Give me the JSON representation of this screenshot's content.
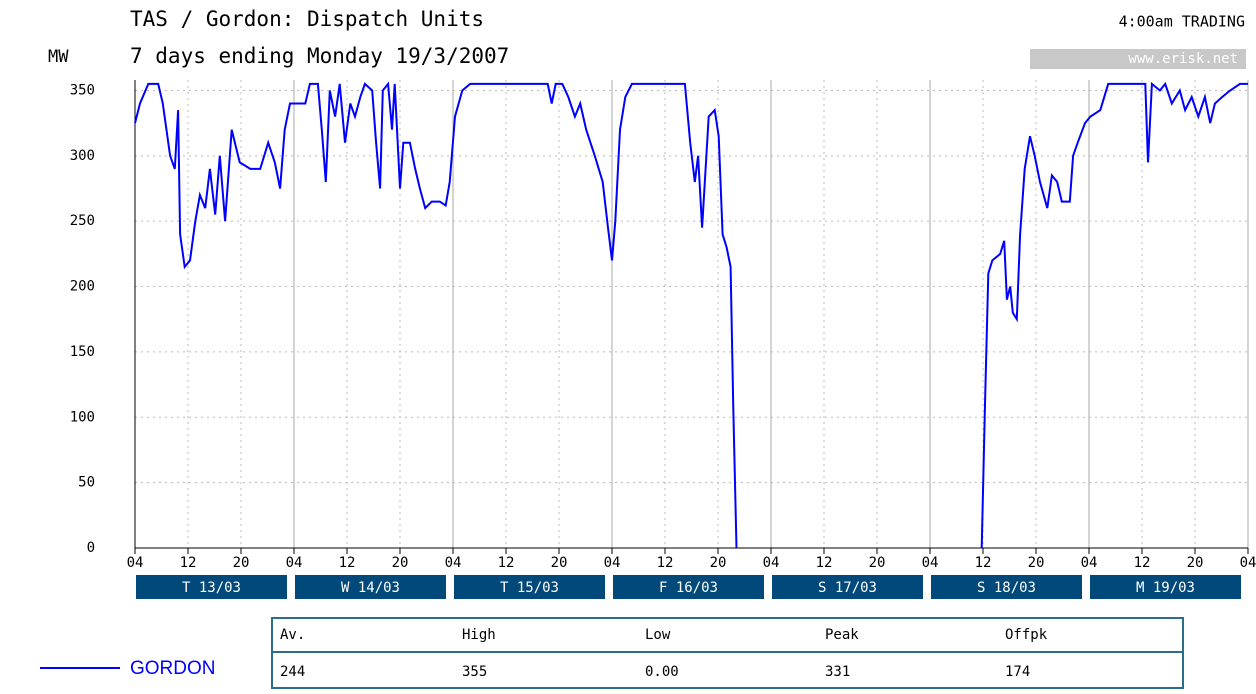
{
  "chart_data": {
    "type": "line",
    "title": "TAS / Gordon: Dispatch Units",
    "subtitle": "7 days ending Monday 19/3/2007",
    "status": "4:00am TRADING",
    "source": "www.erisk.net",
    "y_label": "MW",
    "xlim": [
      0,
      168
    ],
    "xticks": [
      {
        "value": 0,
        "label": "04"
      },
      {
        "value": 8,
        "label": "12"
      },
      {
        "value": 16,
        "label": "20"
      },
      {
        "value": 24,
        "label": "04"
      },
      {
        "value": 32,
        "label": "12"
      },
      {
        "value": 40,
        "label": "20"
      },
      {
        "value": 48,
        "label": "04"
      },
      {
        "value": 56,
        "label": "12"
      },
      {
        "value": 64,
        "label": "20"
      },
      {
        "value": 72,
        "label": "04"
      },
      {
        "value": 80,
        "label": "12"
      },
      {
        "value": 88,
        "label": "20"
      },
      {
        "value": 96,
        "label": "04"
      },
      {
        "value": 104,
        "label": "12"
      },
      {
        "value": 112,
        "label": "20"
      },
      {
        "value": 120,
        "label": "04"
      },
      {
        "value": 128,
        "label": "12"
      },
      {
        "value": 136,
        "label": "20"
      },
      {
        "value": 144,
        "label": "04"
      },
      {
        "value": 152,
        "label": "12"
      },
      {
        "value": 160,
        "label": "20"
      },
      {
        "value": 168,
        "label": "04"
      }
    ],
    "day_labels": [
      "T 13/03",
      "W 14/03",
      "T 15/03",
      "F 16/03",
      "S 17/03",
      "S 18/03",
      "M 19/03"
    ],
    "ylim": [
      0,
      358
    ],
    "yticks": [
      0,
      50,
      100,
      150,
      200,
      250,
      300,
      350
    ],
    "grid": true,
    "x": [
      0,
      0.75,
      2,
      3.5,
      4.2,
      5.3,
      6,
      6.5,
      6.8,
      7.5,
      8.3,
      9.1,
      9.8,
      10.6,
      11.3,
      12.1,
      12.8,
      13.6,
      14.6,
      15.8,
      17.4,
      18.9,
      20.1,
      21.1,
      21.9,
      22.6,
      23.4,
      24.2,
      25.7,
      26.4,
      27.6,
      28.2,
      28.8,
      29.4,
      30.2,
      30.9,
      31.7,
      32.5,
      33.2,
      34,
      34.7,
      35.8,
      36.4,
      37,
      37.4,
      38.2,
      38.8,
      39.2,
      40,
      40.5,
      41.5,
      42.3,
      43,
      43.8,
      44.8,
      46,
      46.9,
      47.5,
      48.3,
      49.4,
      50.6,
      53.6,
      61.1,
      62.3,
      62.9,
      63.5,
      64.5,
      65.4,
      66.4,
      67.2,
      68.1,
      69.4,
      70.6,
      71.4,
      72,
      72.5,
      73.2,
      74,
      75,
      83,
      83.8,
      84.5,
      85,
      85.6,
      86.6,
      87.5,
      88.1,
      88.7,
      89.3,
      89.9,
      90.3,
      90.8,
      110,
      127.8,
      128.3,
      128.8,
      129.4,
      130.6,
      131.2,
      131.6,
      132.1,
      132.5,
      133.1,
      133.6,
      134.3,
      135.1,
      135.8,
      136.6,
      137.7,
      138.4,
      139.2,
      139.9,
      141.1,
      141.6,
      142.3,
      143.4,
      144.2,
      145.7,
      146.9,
      152.5,
      152.9,
      153.5,
      154.7,
      155.5,
      156.5,
      157.7,
      158.5,
      159.5,
      160.5,
      161.5,
      162.3,
      163,
      164.1,
      165.3,
      166.8,
      168
    ],
    "series": [
      {
        "name": "GORDON",
        "color": "#0000ff",
        "values": [
          325,
          340,
          355,
          355,
          340,
          300,
          290,
          335,
          240,
          215,
          220,
          250,
          270,
          260,
          290,
          255,
          300,
          250,
          320,
          295,
          290,
          290,
          310,
          295,
          275,
          320,
          340,
          340,
          340,
          355,
          355,
          320,
          280,
          350,
          330,
          355,
          310,
          340,
          330,
          345,
          355,
          350,
          310,
          275,
          350,
          355,
          320,
          355,
          275,
          310,
          310,
          290,
          275,
          260,
          265,
          265,
          262,
          280,
          330,
          350,
          355,
          355,
          355,
          355,
          340,
          355,
          355,
          345,
          330,
          340,
          320,
          300,
          280,
          245,
          220,
          250,
          320,
          345,
          355,
          355,
          310,
          280,
          300,
          245,
          330,
          335,
          315,
          240,
          230,
          215,
          110,
          0,
          null,
          0,
          110,
          210,
          220,
          225,
          235,
          190,
          200,
          180,
          175,
          240,
          290,
          315,
          300,
          280,
          260,
          285,
          280,
          265,
          265,
          300,
          310,
          325,
          330,
          335,
          355,
          355,
          295,
          355,
          350,
          355,
          340,
          350,
          335,
          345,
          330,
          345,
          325,
          340,
          345,
          350,
          355,
          355
        ]
      }
    ],
    "stats": {
      "headers": [
        "Av.",
        "High",
        "Low",
        "Peak",
        "Offpk"
      ],
      "values": [
        "244",
        "355",
        "0.00",
        "331",
        "174"
      ]
    }
  }
}
